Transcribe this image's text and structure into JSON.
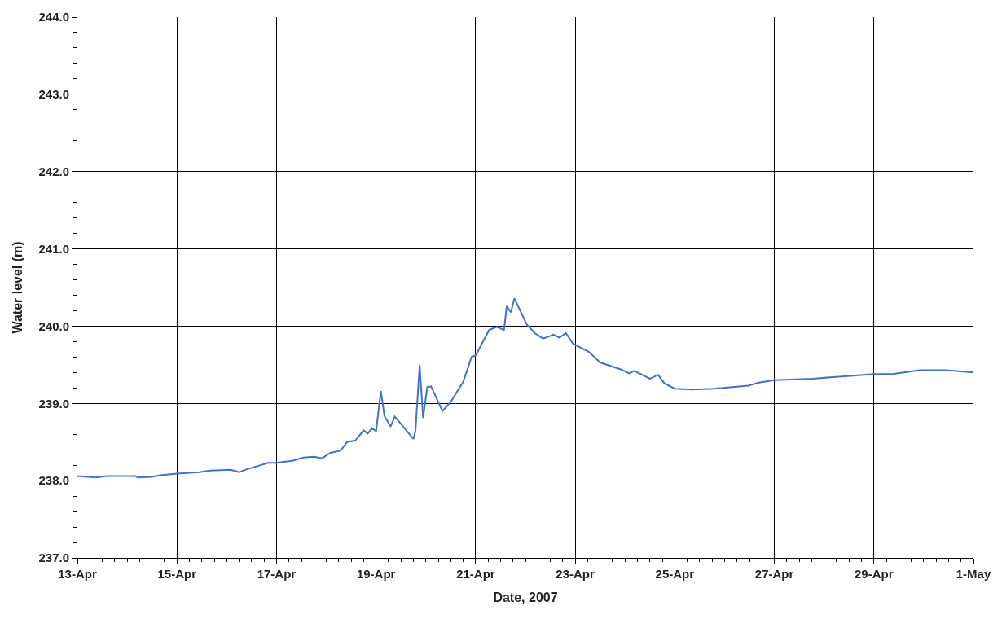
{
  "chart_data": {
    "type": "line",
    "xlabel": "Date, 2007",
    "ylabel": "Water level (m)",
    "series": [
      {
        "color": "#4472c4",
        "x": [
          "2007-04-13T00:00",
          "2007-04-13T09:00",
          "2007-04-13T14:00",
          "2007-04-14T04:00",
          "2007-04-14T05:00",
          "2007-04-14T12:00",
          "2007-04-14T16:00",
          "2007-04-15T00:00",
          "2007-04-15T11:00",
          "2007-04-15T16:00",
          "2007-04-16T02:00",
          "2007-04-16T06:00",
          "2007-04-16T10:00",
          "2007-04-16T15:00",
          "2007-04-16T20:00",
          "2007-04-17T00:00",
          "2007-04-17T08:00",
          "2007-04-17T13:00",
          "2007-04-17T18:00",
          "2007-04-17T22:00",
          "2007-04-18T02:00",
          "2007-04-18T07:00",
          "2007-04-18T10:00",
          "2007-04-18T14:00",
          "2007-04-18T18:00",
          "2007-04-18T20:00",
          "2007-04-18T22:00",
          "2007-04-19T00:00",
          "2007-04-19T02:20",
          "2007-04-19T04:00",
          "2007-04-19T07:00",
          "2007-04-19T09:00",
          "2007-04-19T18:00",
          "2007-04-19T19:00",
          "2007-04-19T21:00",
          "2007-04-19T22:40",
          "2007-04-20T00:40",
          "2007-04-20T02:30",
          "2007-04-20T08:00",
          "2007-04-20T12:00",
          "2007-04-20T18:00",
          "2007-04-20T22:00",
          "2007-04-21T00:00",
          "2007-04-21T06:30",
          "2007-04-21T10:20",
          "2007-04-21T13:40",
          "2007-04-21T15:00",
          "2007-04-21T17:00",
          "2007-04-21T18:40",
          "2007-04-22T00:40",
          "2007-04-22T04:30",
          "2007-04-22T08:30",
          "2007-04-22T13:40",
          "2007-04-22T16:20",
          "2007-04-22T19:30",
          "2007-04-22T23:00",
          "2007-04-23T06:30",
          "2007-04-23T12:00",
          "2007-04-23T22:00",
          "2007-04-24T02:00",
          "2007-04-24T04:30",
          "2007-04-24T12:00",
          "2007-04-24T16:00",
          "2007-04-24T19:00",
          "2007-04-25T00:00",
          "2007-04-25T08:30",
          "2007-04-25T19:00",
          "2007-04-26T11:30",
          "2007-04-26T16:30",
          "2007-04-27T00:00",
          "2007-04-27T18:30",
          "2007-04-28T14:00",
          "2007-04-29T00:00",
          "2007-04-29T09:00",
          "2007-04-29T22:00",
          "2007-04-30T11:00",
          "2007-05-01T00:00"
        ],
        "values": [
          238.06,
          238.04,
          238.06,
          238.06,
          238.04,
          238.05,
          238.07,
          238.09,
          238.11,
          238.13,
          238.14,
          238.11,
          238.15,
          238.19,
          238.23,
          238.23,
          238.26,
          238.3,
          238.31,
          238.29,
          238.36,
          238.39,
          238.5,
          238.52,
          238.65,
          238.61,
          238.68,
          238.64,
          239.16,
          238.84,
          238.7,
          238.83,
          238.54,
          238.65,
          239.5,
          238.81,
          239.21,
          239.22,
          238.9,
          239.02,
          239.28,
          239.6,
          239.62,
          239.95,
          239.99,
          239.95,
          240.26,
          240.18,
          240.36,
          240.02,
          239.91,
          239.84,
          239.89,
          239.85,
          239.91,
          239.77,
          239.67,
          239.53,
          239.44,
          239.39,
          239.42,
          239.32,
          239.37,
          239.26,
          239.19,
          239.18,
          239.19,
          239.23,
          239.27,
          239.3,
          239.32,
          239.36,
          239.38,
          239.38,
          239.43,
          239.43,
          239.4
        ]
      }
    ],
    "xlim": [
      "2007-04-13T00:00",
      "2007-05-01T00:00"
    ],
    "xticks": [
      {
        "value": "2007-04-13",
        "label": "13-Apr"
      },
      {
        "value": "2007-04-15",
        "label": "15-Apr"
      },
      {
        "value": "2007-04-17",
        "label": "17-Apr"
      },
      {
        "value": "2007-04-19",
        "label": "19-Apr"
      },
      {
        "value": "2007-04-21",
        "label": "21-Apr"
      },
      {
        "value": "2007-04-23",
        "label": "23-Apr"
      },
      {
        "value": "2007-04-25",
        "label": "25-Apr"
      },
      {
        "value": "2007-04-27",
        "label": "27-Apr"
      },
      {
        "value": "2007-04-29",
        "label": "29-Apr"
      },
      {
        "value": "2007-05-01",
        "label": "1-May"
      }
    ],
    "ylim": [
      237,
      244
    ],
    "yticks": [
      {
        "value": 237,
        "label": "237.0"
      },
      {
        "value": 238,
        "label": "238.0"
      },
      {
        "value": 239,
        "label": "239.0"
      },
      {
        "value": 240,
        "label": "240.0"
      },
      {
        "value": 241,
        "label": "241.0"
      },
      {
        "value": 242,
        "label": "242.0"
      },
      {
        "value": 243,
        "label": "243.0"
      },
      {
        "value": 244,
        "label": "244.0"
      }
    ],
    "grid": true,
    "marker": "none",
    "line_style": "solid"
  }
}
